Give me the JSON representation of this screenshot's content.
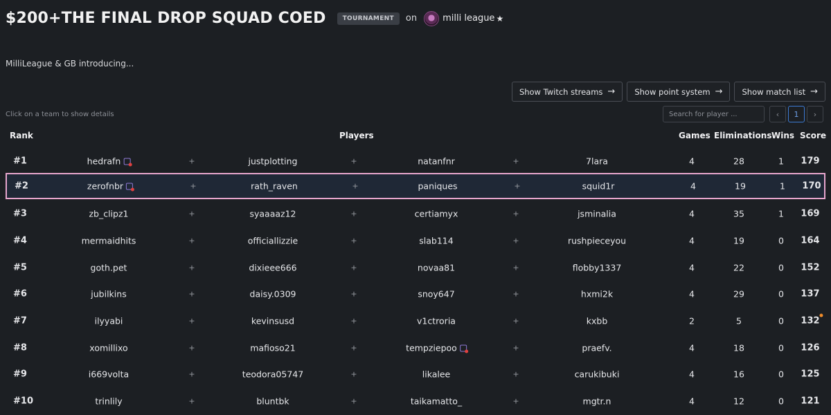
{
  "header": {
    "title": "$200+THE FINAL DROP SQUAD COED",
    "badge": "TOURNAMENT",
    "on_word": "on",
    "league_name": "milli league",
    "star": "★"
  },
  "intro": "MilliLeague & GB introducing...",
  "buttons": {
    "twitch": "Show Twitch streams",
    "points": "Show point system",
    "matches": "Show match list",
    "arrow": "→"
  },
  "hint": "Click on a team to show details",
  "search": {
    "placeholder": "Search for player ..."
  },
  "pagination": {
    "prev": "‹",
    "current": "1",
    "next": "›"
  },
  "table": {
    "headers": {
      "rank": "Rank",
      "players": "Players",
      "games": "Games",
      "eliminations": "Eliminations",
      "wins": "Wins",
      "score": "Score"
    },
    "plus": "+",
    "rows": [
      {
        "rank": "#1",
        "players": [
          "hedrafn",
          "justplotting",
          "natanfnr",
          "7lara"
        ],
        "games": "4",
        "elims": "28",
        "wins": "1",
        "score": "179"
      },
      {
        "rank": "#2",
        "players": [
          "zerofnbr",
          "rath_raven",
          "paniques",
          "squid1r"
        ],
        "games": "4",
        "elims": "19",
        "wins": "1",
        "score": "170"
      },
      {
        "rank": "#3",
        "players": [
          "zb_clipz1",
          "syaaaaz12",
          "certiamyx",
          "jsminalia"
        ],
        "games": "4",
        "elims": "35",
        "wins": "1",
        "score": "169"
      },
      {
        "rank": "#4",
        "players": [
          "mermaidhits",
          "officiallizzie",
          "slab114",
          "rushpieceyou"
        ],
        "games": "4",
        "elims": "19",
        "wins": "0",
        "score": "164"
      },
      {
        "rank": "#5",
        "players": [
          "goth.pet",
          "dixieee666",
          "novaa81",
          "flobby1337"
        ],
        "games": "4",
        "elims": "22",
        "wins": "0",
        "score": "152"
      },
      {
        "rank": "#6",
        "players": [
          "jubilkins",
          "daisy.0309",
          "snoy647",
          "hxmi2k"
        ],
        "games": "4",
        "elims": "29",
        "wins": "0",
        "score": "137"
      },
      {
        "rank": "#7",
        "players": [
          "ilyyabi",
          "kevinsusd",
          "v1ctroria",
          "kxbb"
        ],
        "games": "2",
        "elims": "5",
        "wins": "0",
        "score": "132"
      },
      {
        "rank": "#8",
        "players": [
          "xomillixo",
          "mafioso21",
          "tempziepoo",
          "praefv."
        ],
        "games": "4",
        "elims": "18",
        "wins": "0",
        "score": "126"
      },
      {
        "rank": "#9",
        "players": [
          "i669volta",
          "teodora05747",
          "likalee",
          "carukibuki"
        ],
        "games": "4",
        "elims": "16",
        "wins": "0",
        "score": "125"
      },
      {
        "rank": "#10",
        "players": [
          "trinlily",
          "bluntbk",
          "taikamatto_",
          "mgtr.n"
        ],
        "games": "4",
        "elims": "12",
        "wins": "0",
        "score": "121"
      }
    ]
  }
}
